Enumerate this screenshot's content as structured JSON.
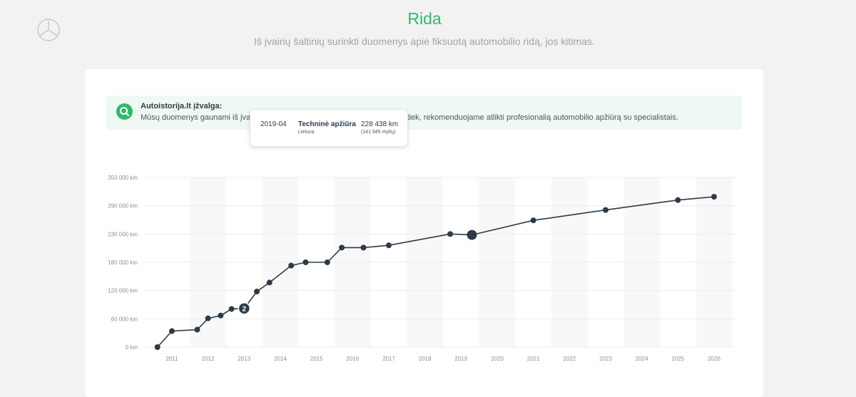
{
  "page": {
    "title": "Rida",
    "subtitle": "Iš įvairių šaltinių surinkti duomenys apie fiksuotą automobilio ridą, jos kitimas."
  },
  "insight": {
    "title": "Autoistorija.lt įžvalga:",
    "text": "Mūsų duomenys gaunami iš įvairių oficialių duomenų šaltinių, tačiau mes vis tiek, rekomenduojame atlikti profesionalią automobilio apžiūrą su specialistais."
  },
  "tooltip": {
    "date": "2019-04",
    "event": "Techninė apžiūra",
    "country": "Lietuva",
    "km": "228 438 km",
    "miles": "(141 945 mylių)"
  },
  "colors": {
    "accent": "#2fb96b",
    "line": "#2d3a48"
  },
  "chart_data": {
    "type": "line",
    "xlabel": "",
    "ylabel": "",
    "ylim": [
      0,
      350000
    ],
    "xlim": [
      2010.6,
      2026.6
    ],
    "grid": true,
    "legend": "none",
    "x_ticks": [
      "2011",
      "2012",
      "2013",
      "2014",
      "2015",
      "2016",
      "2017",
      "2018",
      "2019",
      "2020",
      "2021",
      "2022",
      "2023",
      "2024",
      "2025",
      "2026"
    ],
    "y_ticks": [
      "0 km",
      "60 000 km",
      "120 000 km",
      "180 000 km",
      "230 000 km",
      "290 000 km",
      "350 000 km"
    ],
    "y_tick_values": [
      0,
      60000,
      120000,
      180000,
      230000,
      290000,
      350000
    ],
    "series": [
      {
        "points": [
          {
            "x": 2010.6,
            "y": 0
          },
          {
            "x": 2011.0,
            "y": 34000
          },
          {
            "x": 2011.7,
            "y": 37000
          },
          {
            "x": 2012.0,
            "y": 61000
          },
          {
            "x": 2012.35,
            "y": 67000
          },
          {
            "x": 2012.65,
            "y": 81000
          },
          {
            "x": 2013.0,
            "y": 82000,
            "label": "2"
          },
          {
            "x": 2013.35,
            "y": 118000
          },
          {
            "x": 2013.7,
            "y": 137000
          },
          {
            "x": 2014.3,
            "y": 173000
          },
          {
            "x": 2014.7,
            "y": 180000
          },
          {
            "x": 2015.3,
            "y": 180000
          },
          {
            "x": 2015.7,
            "y": 206000
          },
          {
            "x": 2016.3,
            "y": 206000
          },
          {
            "x": 2017.0,
            "y": 210000
          },
          {
            "x": 2018.7,
            "y": 230000
          },
          {
            "x": 2019.3,
            "y": 228438,
            "highlight": true
          },
          {
            "x": 2021.0,
            "y": 259000
          },
          {
            "x": 2023.0,
            "y": 281000
          },
          {
            "x": 2025.0,
            "y": 302000
          },
          {
            "x": 2026.0,
            "y": 309000
          }
        ]
      }
    ]
  }
}
